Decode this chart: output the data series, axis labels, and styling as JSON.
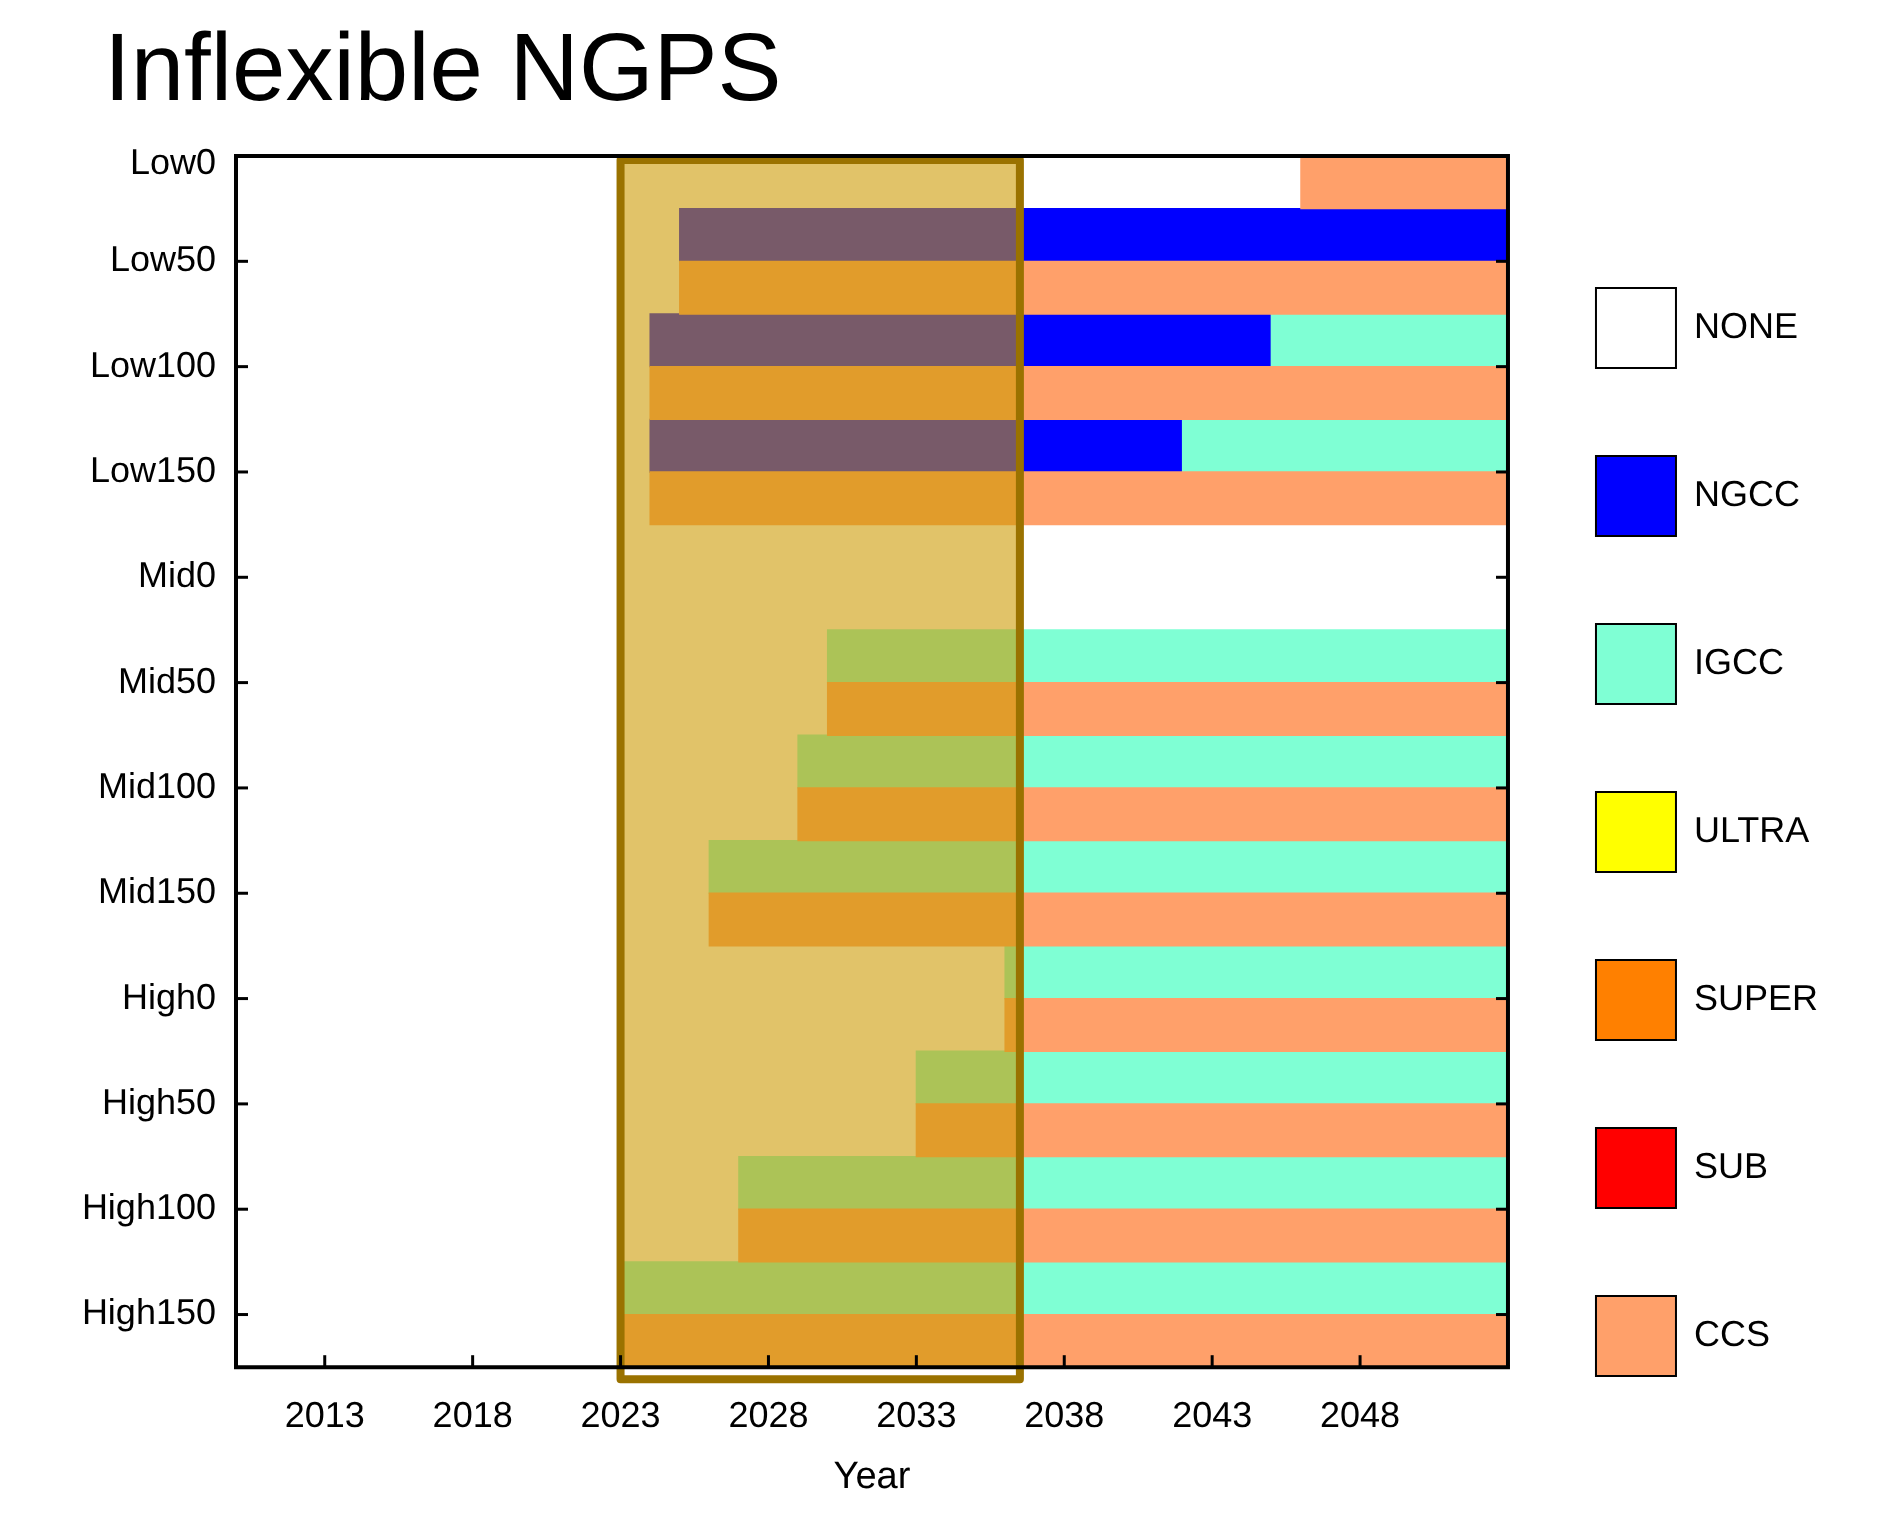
{
  "chart_data": {
    "type": "bar",
    "orientation": "horizontal",
    "title": "Inflexible NGPS",
    "xlabel": "Year",
    "categories": [
      "Low0",
      null,
      "Low50",
      null,
      "Low100",
      null,
      "Low150",
      null,
      "Mid0",
      null,
      "Mid50",
      null,
      "Mid100",
      null,
      "Mid150",
      null,
      "High0",
      null,
      "High50",
      null,
      "High100",
      null,
      "High150"
    ],
    "xlim": [
      2010,
      2053
    ],
    "xticks": [
      2013,
      2018,
      2023,
      2028,
      2033,
      2038,
      2043,
      2048
    ],
    "legend": "right",
    "series": [
      {
        "name": "CCS",
        "color": "#ffa06a",
        "base": [
          2046,
          null,
          2025,
          null,
          2024,
          null,
          2024,
          null,
          null,
          null,
          2030,
          null,
          2029,
          null,
          2026,
          null,
          2036,
          null,
          2033,
          null,
          2027,
          null,
          2023
        ],
        "values": [
          7,
          null,
          28,
          null,
          29,
          null,
          29,
          null,
          null,
          null,
          23,
          null,
          24,
          null,
          27,
          null,
          17,
          null,
          20,
          null,
          26,
          null,
          30
        ]
      },
      {
        "name": "SUB",
        "color": "#ff0000",
        "values": [
          null,
          null,
          null,
          null,
          null,
          null,
          null,
          null,
          null,
          null,
          null,
          null,
          null,
          null,
          null,
          null,
          null,
          null,
          null,
          null,
          null,
          null,
          null
        ]
      },
      {
        "name": "SUPER",
        "color": "#ff8000",
        "values": [
          null,
          null,
          null,
          null,
          null,
          null,
          null,
          null,
          null,
          null,
          null,
          null,
          null,
          null,
          null,
          null,
          null,
          null,
          null,
          null,
          null,
          null,
          null
        ]
      },
      {
        "name": "ULTRA",
        "color": "#ffff00",
        "values": [
          null,
          null,
          null,
          null,
          null,
          null,
          null,
          null,
          null,
          null,
          null,
          null,
          null,
          null,
          null,
          null,
          null,
          null,
          null,
          null,
          null,
          null,
          null
        ]
      },
      {
        "name": "IGCC",
        "color": "#7fffd4",
        "base": [
          null,
          null,
          null,
          2045,
          null,
          2042,
          null,
          null,
          null,
          2030,
          null,
          2029,
          null,
          2026,
          null,
          2036,
          null,
          2033,
          null,
          2027,
          null,
          2023,
          null
        ],
        "values": [
          null,
          null,
          null,
          8,
          null,
          11,
          null,
          null,
          null,
          23,
          null,
          24,
          null,
          27,
          null,
          17,
          null,
          20,
          null,
          26,
          null,
          30,
          null
        ]
      },
      {
        "name": "NGCC",
        "color": "#0000ff",
        "base": [
          null,
          2025,
          null,
          2024,
          null,
          2024,
          null,
          null,
          null,
          null,
          null,
          null,
          null,
          null,
          null,
          null,
          null,
          null,
          null,
          null,
          null,
          null,
          null
        ],
        "values": [
          null,
          28,
          null,
          21,
          null,
          18,
          null,
          null,
          null,
          null,
          null,
          null,
          null,
          null,
          null,
          null,
          null,
          null,
          null,
          null,
          null,
          null,
          null
        ]
      },
      {
        "name": "NONE",
        "color": "#ffffff",
        "values": [
          null,
          null,
          null,
          null,
          null,
          null,
          null,
          null,
          null,
          null,
          null,
          null,
          null,
          null,
          null,
          null,
          null,
          null,
          null,
          null,
          null,
          null,
          null
        ]
      }
    ],
    "bands": [
      {
        "axis": "x",
        "from": 2023,
        "to": 2036.5,
        "color": "#cc9900"
      }
    ]
  }
}
